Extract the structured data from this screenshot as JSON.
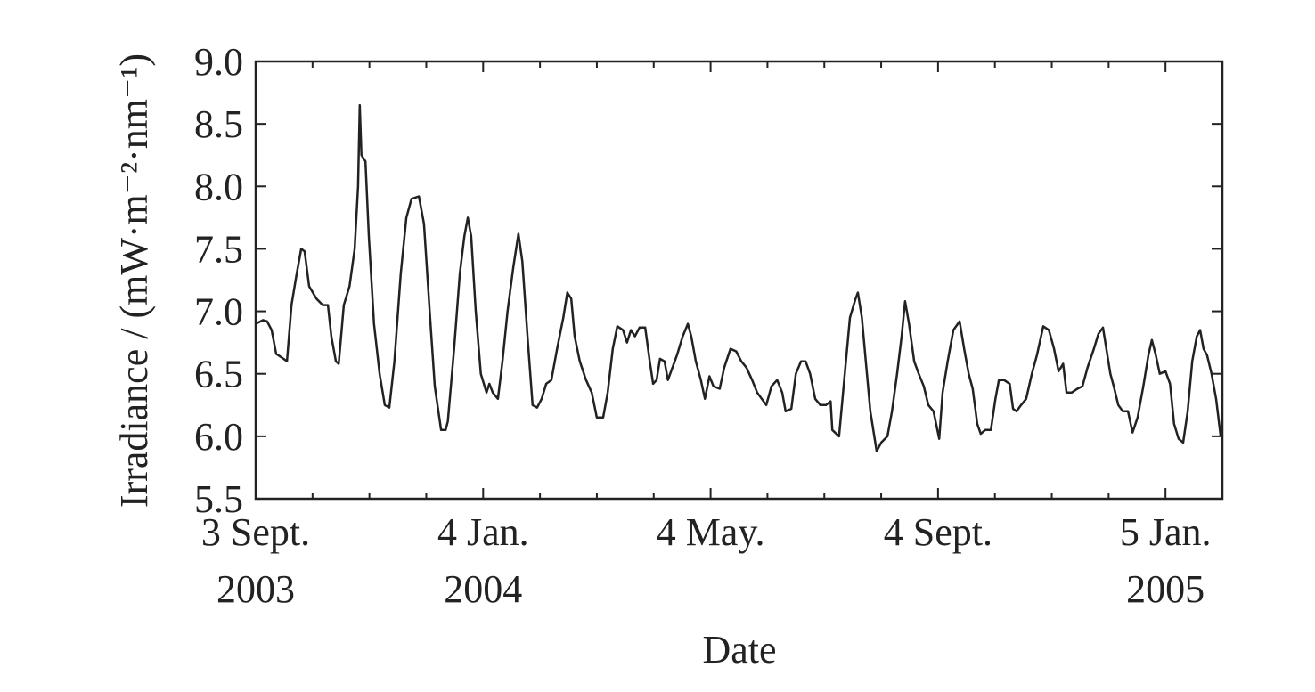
{
  "chart_data": {
    "type": "line",
    "x_label": "Date",
    "y_label": "Irradiance / (mW·m⁻²·nm⁻¹)",
    "xlim": [
      0,
      17
    ],
    "xticks": [
      {
        "value": 0,
        "label": [
          "3 Sept.",
          "2003"
        ]
      },
      {
        "value": 4,
        "label": [
          "4 Jan.",
          "2004"
        ]
      },
      {
        "value": 8,
        "label": [
          "4 May."
        ]
      },
      {
        "value": 12,
        "label": [
          "4 Sept."
        ]
      },
      {
        "value": 16,
        "label": [
          "5 Jan.",
          "2005"
        ]
      }
    ],
    "xminor_ticks": [
      1,
      2,
      3,
      5,
      6,
      7,
      9,
      10,
      11,
      13,
      14,
      15,
      17
    ],
    "ylim": [
      5.5,
      9.0
    ],
    "yticks": [
      5.5,
      {
        "value": 6.0,
        "label": "6.0"
      },
      6.5,
      {
        "value": 7.0,
        "label": "7.0"
      },
      7.5,
      {
        "value": 8.0,
        "label": "8.0"
      },
      8.5,
      {
        "value": 9.0,
        "label": "9.0"
      }
    ],
    "series": [
      {
        "color": "#222222",
        "x": [
          0,
          0.13,
          0.2,
          0.28,
          0.36,
          0.49,
          0.55,
          0.63,
          0.72,
          0.8,
          0.86,
          0.94,
          1.07,
          1.18,
          1.27,
          1.33,
          1.41,
          1.46,
          1.55,
          1.65,
          1.74,
          1.8,
          1.83,
          1.86,
          1.93,
          1.99,
          2.08,
          2.18,
          2.27,
          2.35,
          2.44,
          2.55,
          2.65,
          2.74,
          2.87,
          2.96,
          3.06,
          3.15,
          3.26,
          3.34,
          3.38,
          3.49,
          3.59,
          3.67,
          3.73,
          3.79,
          3.87,
          3.96,
          4.06,
          4.11,
          4.17,
          4.26,
          4.34,
          4.43,
          4.53,
          4.62,
          4.69,
          4.78,
          4.87,
          4.95,
          5.03,
          5.11,
          5.2,
          5.3,
          5.41,
          5.48,
          5.55,
          5.61,
          5.7,
          5.81,
          5.91,
          6.0,
          6.11,
          6.19,
          6.28,
          6.36,
          6.46,
          6.53,
          6.6,
          6.67,
          6.75,
          6.85,
          6.93,
          6.99,
          7.05,
          7.11,
          7.19,
          7.25,
          7.33,
          7.41,
          7.51,
          7.6,
          7.66,
          7.74,
          7.83,
          7.9,
          7.98,
          8.05,
          8.16,
          8.24,
          8.35,
          8.45,
          8.54,
          8.63,
          8.73,
          8.82,
          8.9,
          8.98,
          9.07,
          9.17,
          9.26,
          9.32,
          9.42,
          9.5,
          9.59,
          9.67,
          9.75,
          9.84,
          9.93,
          10.03,
          10.11,
          10.14,
          10.26,
          10.36,
          10.45,
          10.55,
          10.59,
          10.66,
          10.73,
          10.81,
          10.92,
          11.0,
          11.11,
          11.19,
          11.28,
          11.36,
          11.42,
          11.49,
          11.58,
          11.66,
          11.75,
          11.83,
          11.92,
          12.02,
          12.08,
          12.17,
          12.27,
          12.38,
          12.46,
          12.54,
          12.61,
          12.69,
          12.75,
          12.83,
          12.93,
          13.01,
          13.07,
          13.16,
          13.26,
          13.32,
          13.38,
          13.46,
          13.55,
          13.65,
          13.74,
          13.85,
          13.95,
          14.04,
          14.12,
          14.2,
          14.26,
          14.35,
          14.45,
          14.54,
          14.63,
          14.74,
          14.82,
          14.9,
          14.96,
          15.03,
          15.09,
          15.17,
          15.25,
          15.34,
          15.42,
          15.51,
          15.61,
          15.7,
          15.76,
          15.83,
          15.9,
          16.0,
          16.08,
          16.15,
          16.23,
          16.31,
          16.39,
          16.47,
          16.55,
          16.61,
          16.67,
          16.73,
          16.81,
          16.89,
          16.97
        ],
        "values": [
          6.9,
          6.93,
          6.92,
          6.85,
          6.66,
          6.62,
          6.6,
          7.05,
          7.3,
          7.5,
          7.48,
          7.2,
          7.1,
          7.05,
          7.05,
          6.8,
          6.6,
          6.58,
          7.05,
          7.2,
          7.5,
          8.0,
          8.65,
          8.25,
          8.2,
          7.6,
          6.9,
          6.5,
          6.25,
          6.23,
          6.6,
          7.3,
          7.75,
          7.9,
          7.92,
          7.7,
          7.0,
          6.4,
          6.05,
          6.05,
          6.12,
          6.7,
          7.3,
          7.6,
          7.75,
          7.6,
          7.0,
          6.5,
          6.35,
          6.42,
          6.35,
          6.3,
          6.6,
          7.0,
          7.35,
          7.62,
          7.4,
          6.8,
          6.25,
          6.23,
          6.3,
          6.42,
          6.45,
          6.7,
          6.95,
          7.15,
          7.1,
          6.8,
          6.6,
          6.45,
          6.35,
          6.15,
          6.15,
          6.35,
          6.7,
          6.88,
          6.85,
          6.75,
          6.85,
          6.8,
          6.87,
          6.87,
          6.6,
          6.42,
          6.45,
          6.62,
          6.6,
          6.45,
          6.55,
          6.65,
          6.8,
          6.9,
          6.8,
          6.6,
          6.45,
          6.3,
          6.48,
          6.4,
          6.38,
          6.55,
          6.7,
          6.68,
          6.6,
          6.55,
          6.45,
          6.35,
          6.3,
          6.25,
          6.4,
          6.45,
          6.35,
          6.2,
          6.22,
          6.5,
          6.6,
          6.6,
          6.5,
          6.3,
          6.25,
          6.25,
          6.28,
          6.05,
          6.0,
          6.5,
          6.95,
          7.1,
          7.15,
          6.95,
          6.6,
          6.2,
          5.88,
          5.95,
          6.0,
          6.2,
          6.5,
          6.8,
          7.08,
          6.9,
          6.6,
          6.5,
          6.4,
          6.25,
          6.2,
          5.98,
          6.35,
          6.6,
          6.85,
          6.92,
          6.7,
          6.5,
          6.38,
          6.1,
          6.02,
          6.05,
          6.05,
          6.3,
          6.45,
          6.45,
          6.42,
          6.22,
          6.2,
          6.25,
          6.3,
          6.5,
          6.65,
          6.88,
          6.85,
          6.7,
          6.52,
          6.58,
          6.35,
          6.35,
          6.38,
          6.4,
          6.55,
          6.7,
          6.82,
          6.87,
          6.7,
          6.5,
          6.4,
          6.25,
          6.2,
          6.2,
          6.03,
          6.15,
          6.4,
          6.65,
          6.77,
          6.65,
          6.5,
          6.52,
          6.42,
          6.1,
          5.98,
          5.95,
          6.2,
          6.6,
          6.8,
          6.85,
          6.7,
          6.65,
          6.5,
          6.3,
          6.0
        ]
      }
    ]
  }
}
